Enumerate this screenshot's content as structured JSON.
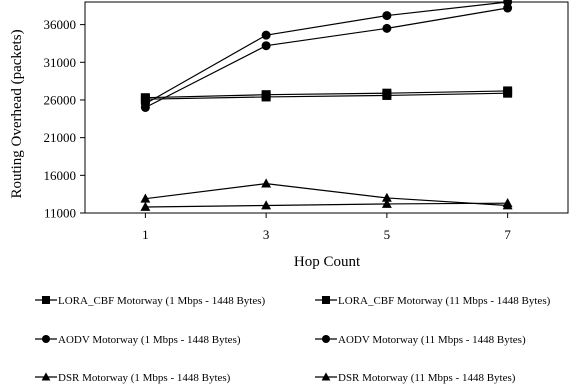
{
  "chart_data": {
    "type": "line",
    "xlabel": "Hop Count",
    "ylabel": "Routing Overhead (packets)",
    "x": [
      1,
      3,
      5,
      7
    ],
    "x_ticks": [
      "1",
      "3",
      "5",
      "7"
    ],
    "y_ticks": [
      11000,
      16000,
      21000,
      26000,
      31000,
      36000
    ],
    "y_tick_labels": [
      "11000",
      "16000",
      "21000",
      "26000",
      "31000",
      "36000"
    ],
    "ylim": [
      11000,
      39000
    ],
    "xlim": [
      0,
      8
    ],
    "grid": false,
    "legend_position": "bottom",
    "series": [
      {
        "name": "LORA_CBF Motorway (1 Mbps - 1448 Bytes)",
        "marker": "square",
        "values": [
          26300,
          26700,
          26900,
          27200
        ]
      },
      {
        "name": "LORA_CBF Motorway (11 Mbps - 1448 Bytes)",
        "marker": "square",
        "values": [
          26100,
          26400,
          26600,
          26900
        ]
      },
      {
        "name": "AODV Motorway (1 Mbps - 1448 Bytes)",
        "marker": "circle",
        "values": [
          25500,
          34600,
          37200,
          39000
        ]
      },
      {
        "name": "AODV Motorway (11 Mbps - 1448 Bytes)",
        "marker": "circle",
        "values": [
          25000,
          33200,
          35500,
          38200
        ]
      },
      {
        "name": "DSR Motorway (1 Mbps - 1448 Bytes)",
        "marker": "triangle",
        "values": [
          12900,
          14900,
          13000,
          12000
        ]
      },
      {
        "name": "DSR Motorway (11 Mbps - 1448 Bytes)",
        "marker": "triangle",
        "values": [
          11800,
          12000,
          12200,
          12300
        ]
      }
    ]
  }
}
